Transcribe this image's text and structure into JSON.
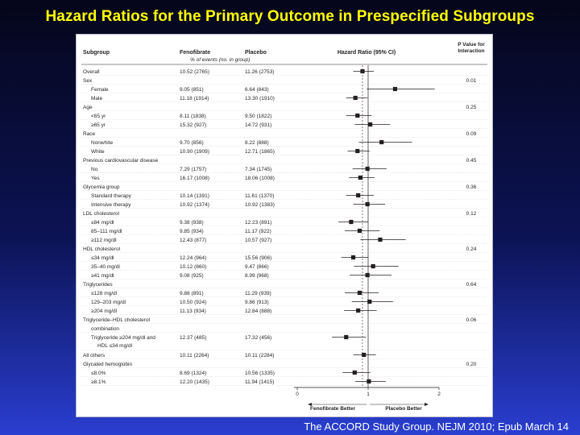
{
  "slide": {
    "title": "Hazard Ratios for the Primary Outcome in Prespecified Subgroups",
    "citation": "The ACCORD Study Group. NEJM 2010; Epub March 14"
  },
  "chart_data": {
    "type": "forest",
    "columns": {
      "subgroup": "Subgroup",
      "fenofibrate": "Fenofibrate",
      "placebo": "Placebo",
      "events_note": "% of events (no. in group)",
      "hr": "Hazard Ratio (95% CI)",
      "p_line1": "P Value for",
      "p_line2": "Interaction"
    },
    "x_axis": {
      "range": [
        0,
        2
      ],
      "ticks": [
        "0",
        "1",
        "2"
      ],
      "left_label": "Fenofibrate Better",
      "right_label": "Placebo Better"
    },
    "rows": [
      {
        "label": "Overall",
        "header": false,
        "indent": 0,
        "fenofibrate": "10.52 (2765)",
        "placebo": "11.26 (2753)",
        "hr": 0.92,
        "lo": 0.79,
        "hi": 1.08,
        "p": ""
      },
      {
        "label": "Sex",
        "header": true,
        "p": "0.01"
      },
      {
        "label": "Female",
        "header": false,
        "indent": 1,
        "fenofibrate": "9.05 (851)",
        "placebo": "6.64 (843)",
        "hr": 1.38,
        "lo": 0.98,
        "hi": 1.94,
        "p": ""
      },
      {
        "label": "Male",
        "header": false,
        "indent": 1,
        "fenofibrate": "11.18 (1914)",
        "placebo": "13.30 (1910)",
        "hr": 0.82,
        "lo": 0.69,
        "hi": 0.99,
        "p": ""
      },
      {
        "label": "Age",
        "header": true,
        "p": "0.25"
      },
      {
        "label": "<65 yr",
        "header": false,
        "indent": 1,
        "fenofibrate": "8.11 (1838)",
        "placebo": "9.50 (1822)",
        "hr": 0.85,
        "lo": 0.69,
        "hi": 1.05,
        "p": ""
      },
      {
        "label": "≥65 yr",
        "header": false,
        "indent": 1,
        "fenofibrate": "15.32 (927)",
        "placebo": "14.72 (931)",
        "hr": 1.03,
        "lo": 0.81,
        "hi": 1.31,
        "p": ""
      },
      {
        "label": "Race",
        "header": true,
        "p": "0.09"
      },
      {
        "label": "Nonwhite",
        "header": false,
        "indent": 1,
        "fenofibrate": "9.70 (856)",
        "placebo": "8.22 (888)",
        "hr": 1.19,
        "lo": 0.87,
        "hi": 1.62,
        "p": ""
      },
      {
        "label": "White",
        "header": false,
        "indent": 1,
        "fenofibrate": "10.90 (1909)",
        "placebo": "12.71 (1865)",
        "hr": 0.85,
        "lo": 0.71,
        "hi": 1.02,
        "p": ""
      },
      {
        "label": "Previous cardiovascular disease",
        "header": true,
        "p": "0.45"
      },
      {
        "label": "No",
        "header": false,
        "indent": 1,
        "fenofibrate": "7.29 (1757)",
        "placebo": "7.34 (1745)",
        "hr": 0.99,
        "lo": 0.78,
        "hi": 1.26,
        "p": ""
      },
      {
        "label": "Yes",
        "header": false,
        "indent": 1,
        "fenofibrate": "16.17 (1008)",
        "placebo": "18.06 (1008)",
        "hr": 0.89,
        "lo": 0.73,
        "hi": 1.09,
        "p": ""
      },
      {
        "label": "Glycemia group",
        "header": true,
        "p": "0.36"
      },
      {
        "label": "Standard therapy",
        "header": false,
        "indent": 1,
        "fenofibrate": "10.14 (1391)",
        "placebo": "11.61 (1370)",
        "hr": 0.86,
        "lo": 0.69,
        "hi": 1.08,
        "p": ""
      },
      {
        "label": "Intensive therapy",
        "header": false,
        "indent": 1,
        "fenofibrate": "10.92 (1374)",
        "placebo": "10.92 (1383)",
        "hr": 0.99,
        "lo": 0.79,
        "hi": 1.24,
        "p": ""
      },
      {
        "label": "LDL cholesterol",
        "header": true,
        "p": "0.12"
      },
      {
        "label": "≤84 mg/dl",
        "header": false,
        "indent": 1,
        "fenofibrate": "9.38 (938)",
        "placebo": "12.23 (891)",
        "hr": 0.76,
        "lo": 0.58,
        "hi": 1.0,
        "p": ""
      },
      {
        "label": "85–111 mg/dl",
        "header": false,
        "indent": 1,
        "fenofibrate": "9.85 (934)",
        "placebo": "11.17 (922)",
        "hr": 0.88,
        "lo": 0.67,
        "hi": 1.16,
        "p": ""
      },
      {
        "label": "≥112 mg/dl",
        "header": false,
        "indent": 1,
        "fenofibrate": "12.43 (877)",
        "placebo": "10.57 (927)",
        "hr": 1.17,
        "lo": 0.89,
        "hi": 1.53,
        "p": ""
      },
      {
        "label": "HDL cholesterol",
        "header": true,
        "p": "0.24"
      },
      {
        "label": "≤34 mg/dl",
        "header": false,
        "indent": 1,
        "fenofibrate": "12.24 (964)",
        "placebo": "15.56 (906)",
        "hr": 0.79,
        "lo": 0.62,
        "hi": 1.0,
        "p": ""
      },
      {
        "label": "35–40 mg/dl",
        "header": false,
        "indent": 1,
        "fenofibrate": "10.12 (860)",
        "placebo": "9.47 (866)",
        "hr": 1.07,
        "lo": 0.8,
        "hi": 1.43,
        "p": ""
      },
      {
        "label": "≥41 mg/dl",
        "header": false,
        "indent": 1,
        "fenofibrate": "9.08 (925)",
        "placebo": "8.99 (968)",
        "hr": 0.99,
        "lo": 0.74,
        "hi": 1.33,
        "p": ""
      },
      {
        "label": "Triglycerides",
        "header": true,
        "p": "0.64"
      },
      {
        "label": "≤128 mg/dl",
        "header": false,
        "indent": 1,
        "fenofibrate": "9.88 (891)",
        "placebo": "11.29 (939)",
        "hr": 0.88,
        "lo": 0.67,
        "hi": 1.15,
        "p": ""
      },
      {
        "label": "129–203 mg/dl",
        "header": false,
        "indent": 1,
        "fenofibrate": "10.50 (924)",
        "placebo": "9.86 (913)",
        "hr": 1.02,
        "lo": 0.77,
        "hi": 1.35,
        "p": ""
      },
      {
        "label": "≥204 mg/dl",
        "header": false,
        "indent": 1,
        "fenofibrate": "11.13 (934)",
        "placebo": "12.84 (888)",
        "hr": 0.86,
        "lo": 0.66,
        "hi": 1.12,
        "p": ""
      },
      {
        "label": "Triglyceride–HDL cholesterol",
        "header": true,
        "p": "0.06"
      },
      {
        "label": "combination",
        "header": true,
        "indent": 1,
        "p": ""
      },
      {
        "label": "Triglyceride ≥204 mg/dl and",
        "label2": "HDL ≤34 mg/dl",
        "header": false,
        "indent": 1,
        "fenofibrate": "12.37 (485)",
        "placebo": "17.32 (456)",
        "hr": 0.69,
        "lo": 0.49,
        "hi": 0.97,
        "p": ""
      },
      {
        "label": "All others",
        "header": false,
        "indent": 0,
        "fenofibrate": "10.11 (2264)",
        "placebo": "10.11 (2284)",
        "hr": 0.94,
        "lo": 0.79,
        "hi": 1.11,
        "p": ""
      },
      {
        "label": "Glycated hemoglobin",
        "header": true,
        "p": "0.20"
      },
      {
        "label": "≤8.0%",
        "header": false,
        "indent": 1,
        "fenofibrate": "8.69 (1324)",
        "placebo": "10.56 (1335)",
        "hr": 0.81,
        "lo": 0.64,
        "hi": 1.03,
        "p": ""
      },
      {
        "label": "≥8.1%",
        "header": false,
        "indent": 1,
        "fenofibrate": "12.20 (1435)",
        "placebo": "11.94 (1415)",
        "hr": 1.01,
        "lo": 0.82,
        "hi": 1.25,
        "p": ""
      }
    ]
  }
}
